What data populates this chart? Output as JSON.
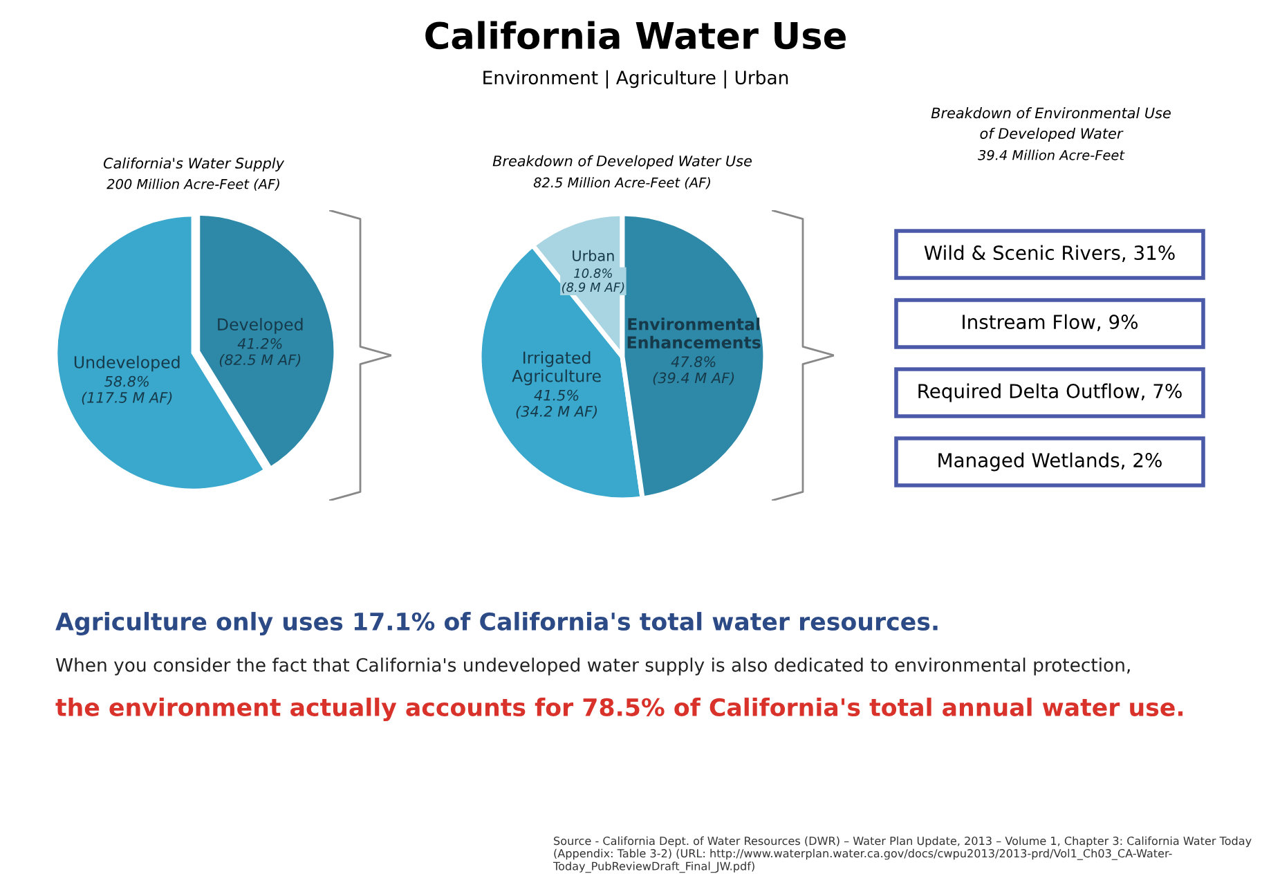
{
  "chart_data": [
    {
      "type": "other",
      "title": "California Water Use",
      "subtitle": "Environment | Agriculture | Urban"
    },
    {
      "type": "pie",
      "title": "California's Water Supply",
      "subtitle": "200 Million Acre-Feet (AF)",
      "categories": [
        "Undeveloped",
        "Developed"
      ],
      "values": [
        58.8,
        41.2
      ],
      "colors": [
        "#3aa8cc",
        "#2e89a8"
      ],
      "value_labels": [
        "58.8%\n(117.5 M AF)",
        "41.2%\n(82.5 M AF)"
      ],
      "legend": false
    },
    {
      "type": "pie",
      "title": "Breakdown of Developed Water Use",
      "subtitle": "82.5 Million Acre-Feet (AF)",
      "categories": [
        "Urban",
        "Irrigated\nAgriculture",
        "Environmental\nEnhancements"
      ],
      "values": [
        10.8,
        41.5,
        47.8
      ],
      "colors": [
        "#a9d5e2",
        "#3aa8cc",
        "#2e89a8"
      ],
      "value_labels": [
        "10.8%\n(8.9 M AF)",
        "41.5%\n(34.2 M AF)",
        "47.8%\n(39.4 M AF)"
      ],
      "legend": false
    },
    {
      "type": "other",
      "title": "Breakdown of Environmental Use\nof Developed Water",
      "subtitle": "39.4 Million Acre-Feet",
      "annotations": [
        "Wild & Scenic Rivers, 31%",
        "Instream Flow, 9%",
        "Required Delta Outflow, 7%",
        "Managed Wetlands, 2%"
      ]
    },
    {
      "type": "other",
      "annotations": [
        "Agriculture only uses 17.1% of California's total water resources.",
        "When you consider the fact that California's undeveloped water supply is also dedicated to environmental protection,",
        "the environment actually accounts for 78.5% of California's total annual water use.",
        "Source - California Dept. of Water Resources (DWR) – Water Plan Update, 2013 – Volume 1, Chapter 3: California Water Today\n(Appendix: Table 3-2) (URL: http://www.waterplan.water.ca.gov/docs/cwpu2013/2013-prd/Vol1_Ch03_CA-Water-\nToday_PubReviewDraft_Final_JW.pdf)"
      ]
    }
  ]
}
